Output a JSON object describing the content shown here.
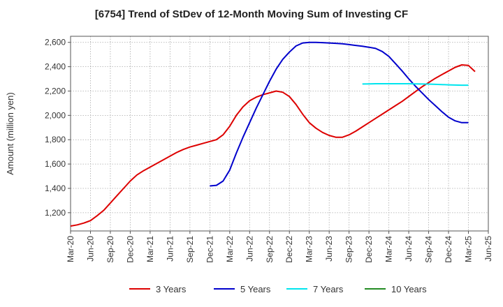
{
  "chart_data": {
    "type": "line",
    "title": "[6754]  Trend of StDev of 12-Month Moving Sum of Investing CF",
    "ylabel": "Amount (million yen)",
    "xlabel": "",
    "ylim": [
      1050,
      2650
    ],
    "yticks": [
      1200,
      1400,
      1600,
      1800,
      2000,
      2200,
      2400,
      2600
    ],
    "yticklabels": [
      "1,200",
      "1,400",
      "1,600",
      "1,800",
      "2,000",
      "2,200",
      "2,400",
      "2,600"
    ],
    "xticklabels": [
      "Mar-20",
      "Jun-20",
      "Sep-20",
      "Dec-20",
      "Mar-21",
      "Jun-21",
      "Sep-21",
      "Dec-21",
      "Mar-22",
      "Jun-22",
      "Sep-22",
      "Dec-22",
      "Mar-23",
      "Jun-23",
      "Sep-23",
      "Dec-23",
      "Mar-24",
      "Jun-24",
      "Sep-24",
      "Dec-24",
      "Mar-25",
      "Jun-25"
    ],
    "grid": true,
    "legend_position": "bottom",
    "series": [
      {
        "name": "3 Years",
        "color": "#dd0000",
        "values": [
          1090,
          1100,
          1115,
          1135,
          1175,
          1220,
          1280,
          1340,
          1400,
          1460,
          1510,
          1545,
          1575,
          1605,
          1635,
          1665,
          1695,
          1720,
          1740,
          1755,
          1770,
          1785,
          1800,
          1840,
          1910,
          2000,
          2070,
          2120,
          2150,
          2170,
          2185,
          2200,
          2190,
          2155,
          2090,
          2010,
          1940,
          1895,
          1860,
          1835,
          1820,
          1820,
          1840,
          1870,
          1905,
          1940,
          1975,
          2010,
          2045,
          2080,
          2115,
          2155,
          2195,
          2235,
          2270,
          2305,
          2335,
          2365,
          2395,
          2415,
          2410,
          2360
        ]
      },
      {
        "name": "5 Years",
        "color": "#0000cc",
        "values": [
          null,
          null,
          null,
          null,
          null,
          null,
          null,
          null,
          null,
          null,
          null,
          null,
          null,
          null,
          null,
          null,
          null,
          null,
          null,
          null,
          null,
          1420,
          1425,
          1460,
          1550,
          1690,
          1820,
          1940,
          2060,
          2170,
          2280,
          2380,
          2460,
          2520,
          2570,
          2595,
          2600,
          2600,
          2598,
          2595,
          2592,
          2588,
          2582,
          2575,
          2568,
          2560,
          2550,
          2525,
          2485,
          2425,
          2365,
          2300,
          2240,
          2185,
          2130,
          2080,
          2030,
          1985,
          1955,
          1940,
          1940,
          null
        ]
      },
      {
        "name": "7 Years",
        "color": "#00e5ee",
        "values": [
          null,
          null,
          null,
          null,
          null,
          null,
          null,
          null,
          null,
          null,
          null,
          null,
          null,
          null,
          null,
          null,
          null,
          null,
          null,
          null,
          null,
          null,
          null,
          null,
          null,
          null,
          null,
          null,
          null,
          null,
          null,
          null,
          null,
          null,
          null,
          null,
          null,
          null,
          null,
          null,
          null,
          null,
          null,
          null,
          2258,
          2259,
          2260,
          2260,
          2260,
          2260,
          2260,
          2260,
          2259,
          2258,
          2257,
          2255,
          2253,
          2251,
          2249,
          2248,
          2248,
          null
        ]
      },
      {
        "name": "10 Years",
        "color": "#228b22",
        "values": []
      }
    ]
  }
}
